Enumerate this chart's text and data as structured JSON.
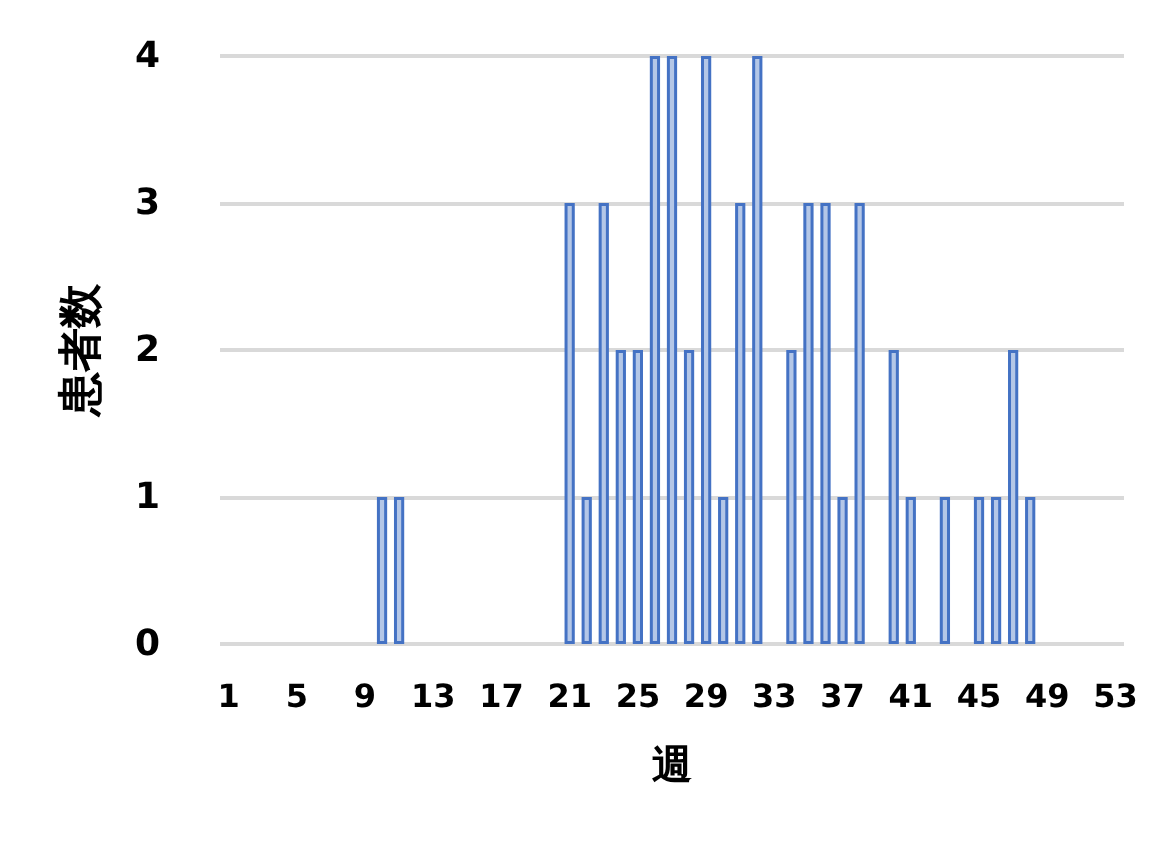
{
  "chart_data": {
    "type": "bar",
    "xlabel": "週",
    "ylabel": "患者数",
    "categories": [
      "1",
      null,
      null,
      null,
      "5",
      null,
      null,
      null,
      "9",
      null,
      null,
      null,
      "13",
      null,
      null,
      null,
      "17",
      null,
      null,
      null,
      "21",
      null,
      null,
      null,
      "25",
      null,
      null,
      null,
      "29",
      null,
      null,
      null,
      "33",
      null,
      null,
      null,
      "37",
      null,
      null,
      null,
      "41",
      null,
      null,
      null,
      "45",
      null,
      null,
      null,
      "49",
      null,
      null,
      null,
      "53"
    ],
    "values": [
      0,
      0,
      0,
      0,
      0,
      0,
      0,
      0,
      0,
      1,
      1,
      0,
      0,
      0,
      0,
      0,
      0,
      0,
      0,
      0,
      3,
      1,
      3,
      2,
      2,
      4,
      4,
      2,
      4,
      1,
      3,
      4,
      0,
      2,
      3,
      3,
      1,
      3,
      0,
      2,
      1,
      0,
      1,
      0,
      1,
      1,
      2,
      1,
      0,
      0,
      0,
      0,
      0
    ],
    "color": "#4472c4",
    "ylim": [
      0,
      4
    ],
    "yticks": [
      0,
      1,
      2,
      3,
      4
    ],
    "grid": "y"
  }
}
